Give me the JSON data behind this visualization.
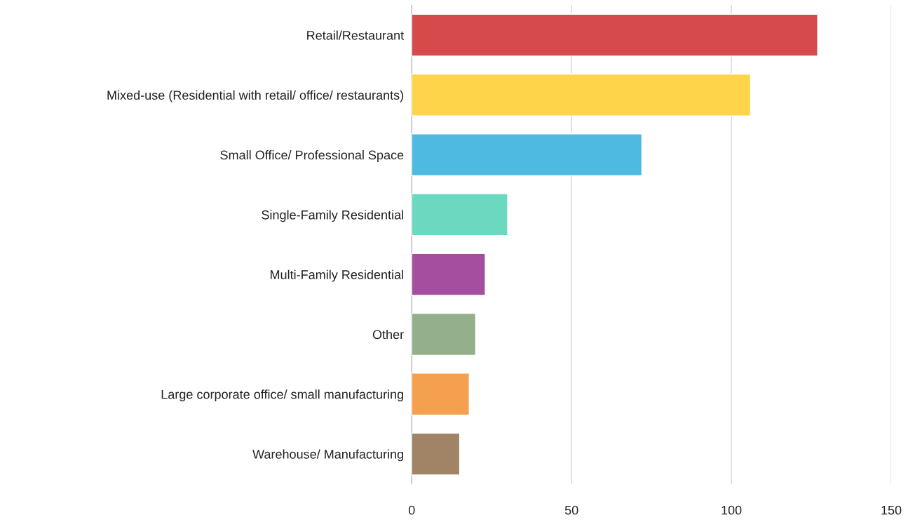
{
  "chart_data": {
    "type": "bar",
    "orientation": "horizontal",
    "categories": [
      "Retail/Restaurant",
      "Mixed-use (Residential with retail/ office/ restaurants)",
      "Small Office/ Professional Space",
      "Single-Family Residential",
      "Multi-Family Residential",
      "Other",
      "Large corporate office/ small manufacturing",
      "Warehouse/ Manufacturing"
    ],
    "values": [
      127,
      106,
      72,
      30,
      23,
      20,
      18,
      15
    ],
    "colors": [
      "#d64a4b",
      "#fed54a",
      "#4ebae1",
      "#6cd8c0",
      "#a54ea0",
      "#93b08a",
      "#f4a04f",
      "#a08465"
    ],
    "xlim": [
      0,
      150
    ],
    "xticks": [
      0,
      50,
      100,
      150
    ],
    "grid": "x",
    "legend": false
  }
}
